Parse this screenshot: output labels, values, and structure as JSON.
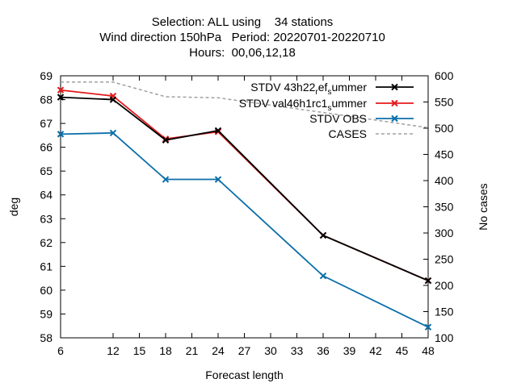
{
  "chart_data": {
    "type": "line",
    "title_lines": [
      "Selection: ALL using    34 stations",
      "Wind direction 150hPa   Period: 20220701-20220710",
      "Hours:  00,06,12,18"
    ],
    "xlabel": "Forecast length",
    "ylabel": "deg",
    "y2label": "No cases",
    "xlim": [
      6,
      48
    ],
    "ylim": [
      58,
      69
    ],
    "y2lim": [
      100,
      600
    ],
    "xticks": [
      6,
      12,
      15,
      18,
      21,
      24,
      27,
      30,
      33,
      36,
      39,
      42,
      45,
      48
    ],
    "yticks": [
      58,
      59,
      60,
      61,
      62,
      63,
      64,
      65,
      66,
      67,
      68,
      69
    ],
    "y2ticks": [
      100,
      150,
      200,
      250,
      300,
      350,
      400,
      450,
      500,
      550,
      600
    ],
    "legend_position": "top-right",
    "grid": false,
    "series": [
      {
        "name": "STDV 43h22_ref_summer",
        "legend_main": "STDV 43h22",
        "legend_sub1": "r",
        "legend_mid": "ef",
        "legend_sub2": "s",
        "legend_tail": "ummer",
        "axis": "y",
        "color": "#000000",
        "marker": "x",
        "x": [
          6,
          12,
          18,
          24,
          36,
          48
        ],
        "values": [
          68.1,
          68.0,
          66.3,
          66.7,
          62.3,
          60.4
        ]
      },
      {
        "name": "STDV val46h1rc1_summer",
        "legend_main": "STDV val46h1rc1",
        "legend_sub1": "",
        "legend_mid": "",
        "legend_sub2": "s",
        "legend_tail": "ummer",
        "axis": "y",
        "color": "#e41a1c",
        "marker": "x",
        "x": [
          6,
          12,
          18,
          24,
          36,
          48
        ],
        "values": [
          68.4,
          68.15,
          66.35,
          66.65,
          62.3,
          60.4
        ]
      },
      {
        "name": "STDV OBS",
        "legend_main": "STDV OBS",
        "legend_sub1": "",
        "legend_mid": "",
        "legend_sub2": "",
        "legend_tail": "",
        "axis": "y",
        "color": "#0b6fa8",
        "marker": "x",
        "x": [
          6,
          12,
          18,
          24,
          36,
          48
        ],
        "values": [
          66.55,
          66.6,
          64.65,
          64.65,
          60.6,
          58.45
        ]
      },
      {
        "name": "CASES",
        "legend_main": "CASES",
        "legend_sub1": "",
        "legend_mid": "",
        "legend_sub2": "",
        "legend_tail": "",
        "axis": "y2",
        "color": "#a0a0a0",
        "dashed": true,
        "marker": "none",
        "x": [
          6,
          12,
          18,
          24,
          36,
          48
        ],
        "values": [
          588,
          588,
          560,
          558,
          530,
          501
        ]
      }
    ]
  }
}
